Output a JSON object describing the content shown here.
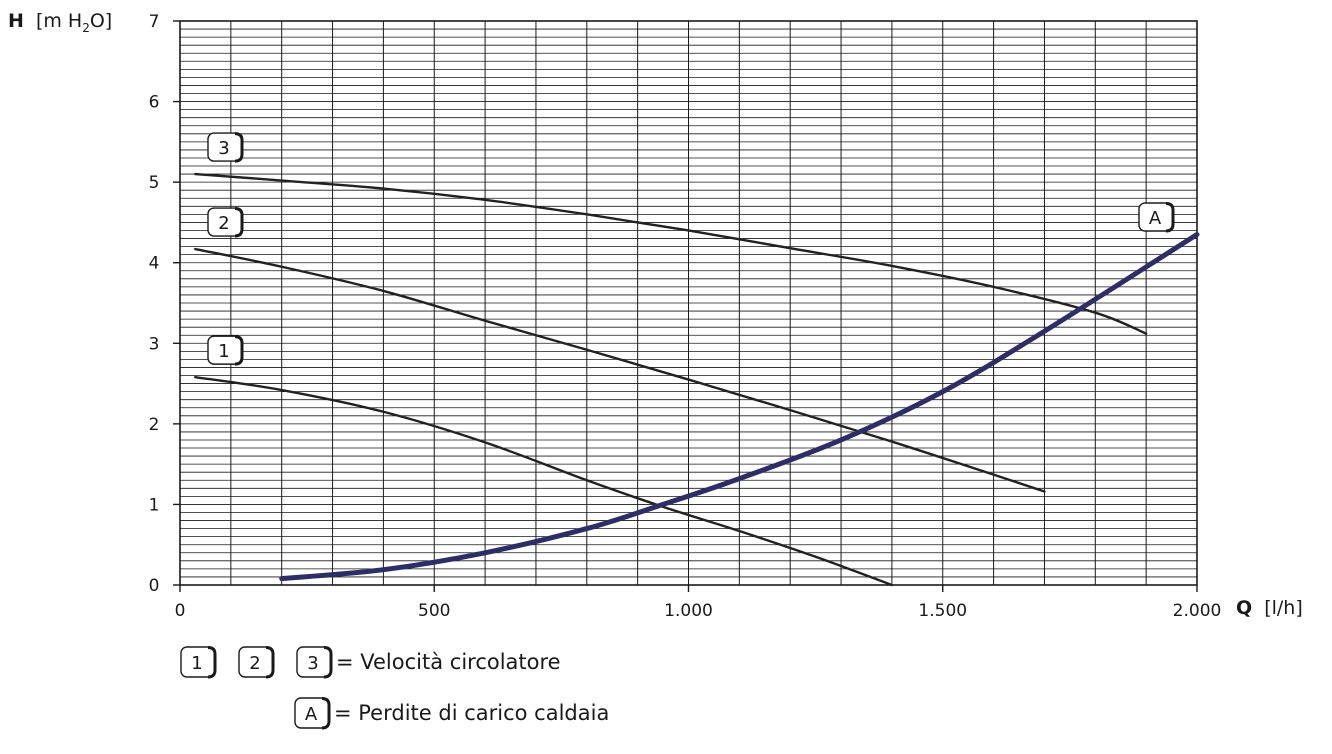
{
  "chart_data": {
    "type": "line",
    "ylabel": {
      "bold": "H",
      "pre": "[m H",
      "sub": "2",
      "post": "O]"
    },
    "xlabel": {
      "bold": "Q",
      "rest": "[l/h]"
    },
    "xlim": [
      0,
      2000
    ],
    "ylim": [
      0,
      7
    ],
    "x_ticks": [
      {
        "value": 0,
        "label": "0"
      },
      {
        "value": 500,
        "label": "500"
      },
      {
        "value": 1000,
        "label": "1.000"
      },
      {
        "value": 1500,
        "label": "1.500"
      },
      {
        "value": 2000,
        "label": "2.000"
      }
    ],
    "y_ticks": [
      {
        "value": 0,
        "label": "0"
      },
      {
        "value": 1,
        "label": "1"
      },
      {
        "value": 2,
        "label": "2"
      },
      {
        "value": 3,
        "label": "3"
      },
      {
        "value": 4,
        "label": "4"
      },
      {
        "value": 5,
        "label": "5"
      },
      {
        "value": 6,
        "label": "6"
      },
      {
        "value": 7,
        "label": "7"
      }
    ],
    "grid": {
      "x_step": 100,
      "y_step": 0.1,
      "y_major": 1
    },
    "series": [
      {
        "name": "1",
        "color": "#222222",
        "x": [
          30,
          200,
          400,
          600,
          800,
          950,
          1100,
          1250,
          1400
        ],
        "y": [
          2.58,
          2.42,
          2.15,
          1.77,
          1.3,
          0.97,
          0.67,
          0.35,
          0.0
        ]
      },
      {
        "name": "2",
        "color": "#222222",
        "x": [
          30,
          200,
          400,
          600,
          800,
          1000,
          1200,
          1400,
          1600,
          1700
        ],
        "y": [
          4.17,
          3.95,
          3.65,
          3.28,
          2.92,
          2.55,
          2.17,
          1.78,
          1.37,
          1.16
        ]
      },
      {
        "name": "3",
        "color": "#222222",
        "x": [
          30,
          200,
          400,
          600,
          800,
          1000,
          1200,
          1400,
          1600,
          1800,
          1900
        ],
        "y": [
          5.1,
          5.02,
          4.92,
          4.78,
          4.6,
          4.4,
          4.18,
          3.96,
          3.7,
          3.38,
          3.12
        ]
      },
      {
        "name": "A",
        "color": "#2e2e66",
        "x": [
          200,
          400,
          600,
          800,
          950,
          1100,
          1300,
          1500,
          1700,
          2000
        ],
        "y": [
          0.08,
          0.19,
          0.4,
          0.7,
          1.0,
          1.32,
          1.8,
          2.4,
          3.15,
          4.35
        ]
      }
    ],
    "legend": [
      {
        "badges": [
          "1",
          "2",
          "3"
        ],
        "text": "= Velocità circolatore"
      },
      {
        "badges": [
          "A"
        ],
        "text": "= Perdite di carico caldaia"
      }
    ]
  }
}
